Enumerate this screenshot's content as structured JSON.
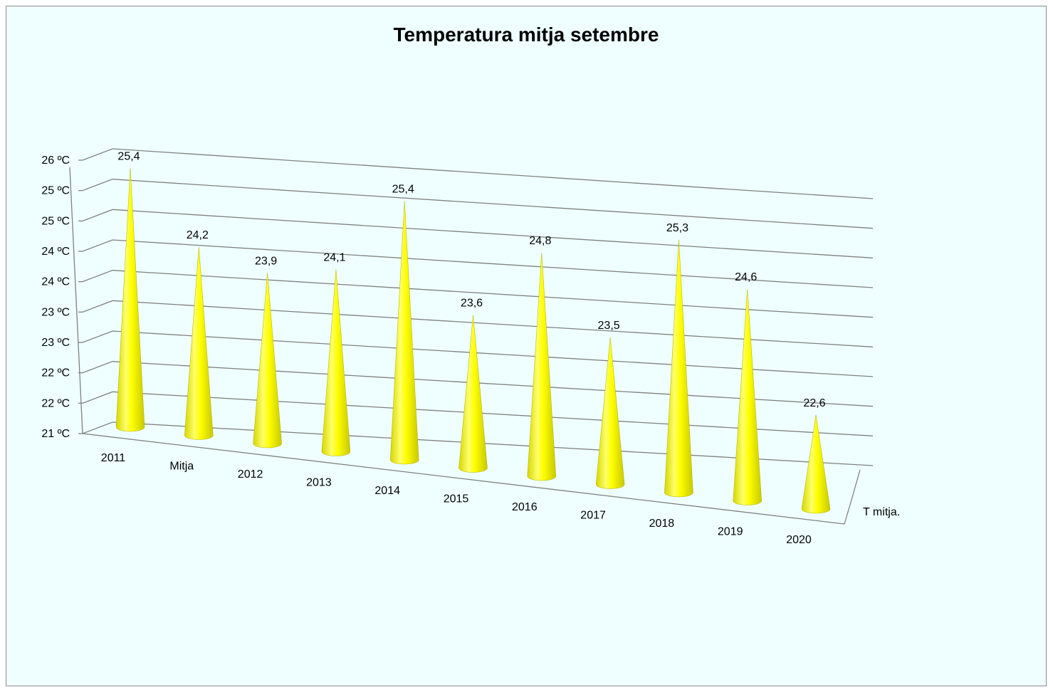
{
  "chart_data": {
    "type": "bar",
    "shape": "cone-3d",
    "title": "Temperatura mitja setembre",
    "categories": [
      "2011",
      "Mitja",
      "2012",
      "2013",
      "2014",
      "2015",
      "2016",
      "2017",
      "2018",
      "2019",
      "2020"
    ],
    "series": [
      {
        "name": "T mitja.",
        "values": [
          25.4,
          24.2,
          23.9,
          24.1,
          25.4,
          23.6,
          24.8,
          23.5,
          25.3,
          24.6,
          22.6
        ],
        "data_labels": [
          "25,4",
          "24,2",
          "23,9",
          "24,1",
          "25,4",
          "23,6",
          "24,8",
          "23,5",
          "25,3",
          "24,6",
          "22,6"
        ]
      }
    ],
    "y_tick_labels": [
      "21 ºC",
      "22 ºC",
      "22 ºC",
      "23 ºC",
      "23 ºC",
      "24 ºC",
      "24 ºC",
      "25 ºC",
      "25 ºC",
      "26 ºC"
    ],
    "ylim": [
      21,
      25.5
    ],
    "grid": true,
    "legend": "none",
    "colors": {
      "background": "#efffff",
      "bar": "#ffff00",
      "grid": "#808080"
    }
  }
}
